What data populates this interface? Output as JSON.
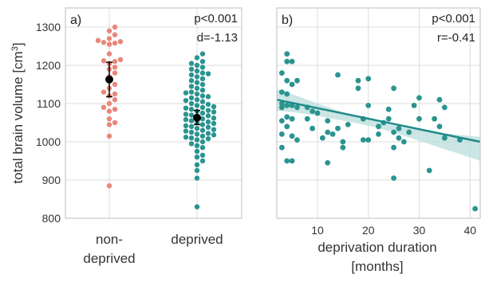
{
  "colors": {
    "nondeprived": "#e8867a",
    "deprived": "#2a9490",
    "regression": "#1f8a8a",
    "ci_band": "#b9dedb",
    "mean_marker": "#000000"
  },
  "chart_data": [
    {
      "type": "scatter",
      "panel_label": "a)",
      "stats": {
        "p": "p<0.001",
        "effect": "d=-1.13"
      },
      "ylabel": "total brain volume [cm³]",
      "ylim": [
        800,
        1350
      ],
      "yticks": [
        800,
        900,
        1000,
        1100,
        1200,
        1300
      ],
      "categories": [
        "non-\ndeprived",
        "deprived"
      ],
      "grid": true,
      "series": [
        {
          "category": "non-\ndeprived",
          "values": [
            1300,
            1290,
            1280,
            1270,
            1265,
            1262,
            1260,
            1258,
            1255,
            1230,
            1215,
            1212,
            1210,
            1205,
            1195,
            1190,
            1180,
            1170,
            1150,
            1140,
            1130,
            1125,
            1120,
            1110,
            1100,
            1090,
            1085,
            1080,
            1060,
            1050,
            1045,
            1015,
            885
          ],
          "mean": 1163,
          "err_low": 1118,
          "err_high": 1208
        },
        {
          "category": "deprived",
          "values": [
            1230,
            1220,
            1210,
            1205,
            1200,
            1195,
            1190,
            1185,
            1180,
            1178,
            1175,
            1170,
            1165,
            1160,
            1155,
            1150,
            1145,
            1140,
            1135,
            1130,
            1128,
            1125,
            1120,
            1118,
            1115,
            1110,
            1108,
            1105,
            1100,
            1098,
            1095,
            1092,
            1090,
            1088,
            1085,
            1082,
            1080,
            1078,
            1075,
            1072,
            1070,
            1068,
            1065,
            1062,
            1060,
            1058,
            1055,
            1052,
            1050,
            1048,
            1045,
            1042,
            1040,
            1038,
            1035,
            1032,
            1030,
            1028,
            1025,
            1022,
            1020,
            1018,
            1015,
            1012,
            1010,
            1008,
            1005,
            1000,
            995,
            990,
            985,
            975,
            965,
            960,
            950,
            940,
            925,
            905,
            830
          ],
          "mean": 1063,
          "err_low": 1045,
          "err_high": 1082
        }
      ]
    },
    {
      "type": "scatter",
      "panel_label": "b)",
      "stats": {
        "p": "p<0.001",
        "effect": "r=-0.41"
      },
      "xlabel": "deprivation duration\n[months]",
      "xlim": [
        2,
        42
      ],
      "xticks": [
        10,
        20,
        30,
        40
      ],
      "ylim": [
        800,
        1350
      ],
      "grid": true,
      "points": [
        [
          3,
          1180
        ],
        [
          3,
          1130
        ],
        [
          3,
          1100
        ],
        [
          3,
          1090
        ],
        [
          3,
          1055
        ],
        [
          3,
          1020
        ],
        [
          3,
          985
        ],
        [
          4,
          1230
        ],
        [
          4,
          1210
        ],
        [
          4,
          1160
        ],
        [
          4,
          1125
        ],
        [
          4,
          1095
        ],
        [
          4,
          1065
        ],
        [
          4,
          1040
        ],
        [
          4,
          950
        ],
        [
          5,
          1210
        ],
        [
          5,
          1150
        ],
        [
          5,
          1095
        ],
        [
          5,
          1060
        ],
        [
          5,
          1015
        ],
        [
          5,
          950
        ],
        [
          6,
          1160
        ],
        [
          6,
          1090
        ],
        [
          6,
          1005
        ],
        [
          8,
          1090
        ],
        [
          8,
          1060
        ],
        [
          9,
          1080
        ],
        [
          9,
          1035
        ],
        [
          10,
          1075
        ],
        [
          11,
          1010
        ],
        [
          12,
          1055
        ],
        [
          12,
          1025
        ],
        [
          12,
          945
        ],
        [
          13,
          1020
        ],
        [
          14,
          1175
        ],
        [
          14,
          1035
        ],
        [
          15,
          1000
        ],
        [
          15,
          985
        ],
        [
          16,
          1045
        ],
        [
          18,
          1160
        ],
        [
          18,
          1140
        ],
        [
          19,
          1060
        ],
        [
          19,
          1005
        ],
        [
          20,
          1165
        ],
        [
          20,
          1095
        ],
        [
          20,
          1005
        ],
        [
          22,
          1040
        ],
        [
          22,
          1020
        ],
        [
          23,
          1050
        ],
        [
          24,
          1085
        ],
        [
          24,
          1060
        ],
        [
          25,
          1140
        ],
        [
          25,
          1025
        ],
        [
          25,
          985
        ],
        [
          25,
          905
        ],
        [
          26,
          1035
        ],
        [
          26,
          1010
        ],
        [
          27,
          1000
        ],
        [
          28,
          1025
        ],
        [
          29,
          1095
        ],
        [
          30,
          1115
        ],
        [
          30,
          1060
        ],
        [
          32,
          925
        ],
        [
          33,
          1060
        ],
        [
          34,
          1110
        ],
        [
          34,
          1040
        ],
        [
          35,
          1090
        ],
        [
          35,
          1010
        ],
        [
          38,
          1005
        ],
        [
          41,
          825
        ]
      ],
      "regression": {
        "x": [
          2,
          42
        ],
        "y": [
          1110,
          1000
        ]
      },
      "ci": {
        "x": [
          2,
          6,
          10,
          14,
          18,
          22,
          26,
          30,
          34,
          38,
          42
        ],
        "upper": [
          1138,
          1120,
          1100,
          1082,
          1065,
          1052,
          1040,
          1030,
          1023,
          1018,
          1013
        ],
        "lower": [
          1082,
          1076,
          1068,
          1058,
          1048,
          1036,
          1020,
          1003,
          985,
          968,
          950
        ]
      }
    }
  ]
}
